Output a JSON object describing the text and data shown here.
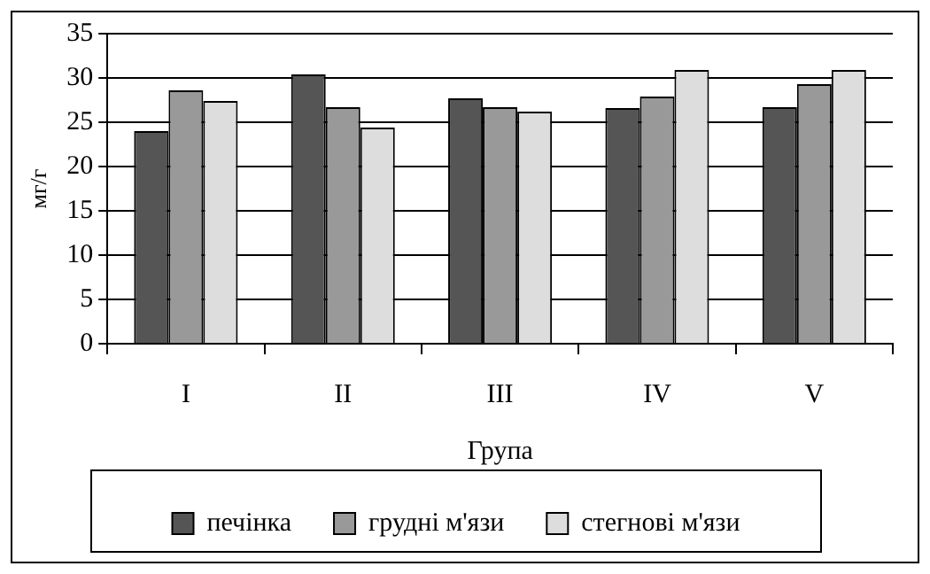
{
  "chart_data": {
    "type": "bar",
    "xlabel": "Група",
    "ylabel": "мг/г",
    "categories": [
      "I",
      "II",
      "III",
      "IV",
      "V"
    ],
    "series": [
      {
        "name": "печінка",
        "color": "#555555",
        "values": [
          24.0,
          30.4,
          27.7,
          26.6,
          26.7
        ]
      },
      {
        "name": "грудні м'язи",
        "color": "#999999",
        "values": [
          28.6,
          26.7,
          26.7,
          27.9,
          29.3
        ]
      },
      {
        "name": "стегнові м'язи",
        "color": "#dddddd",
        "values": [
          27.4,
          24.4,
          26.2,
          30.9,
          30.9
        ]
      }
    ],
    "ylim": [
      0,
      35
    ],
    "yticks": [
      0,
      5,
      10,
      15,
      20,
      25,
      30,
      35
    ],
    "grid": "y",
    "legend": "bottom"
  }
}
